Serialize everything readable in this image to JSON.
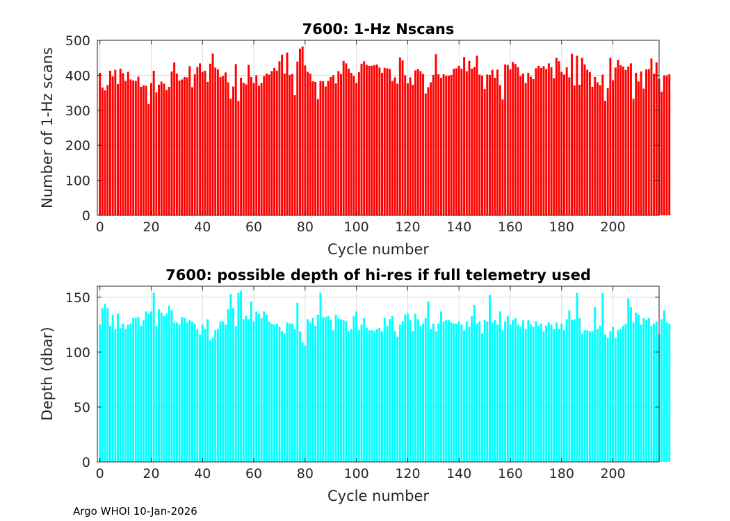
{
  "footer": "Argo WHOI 10-Jan-2026",
  "chart_data": [
    {
      "type": "bar",
      "title": "7600: 1-Hz Nscans",
      "xlabel": "Cycle number",
      "ylabel": "Number of 1-Hz scans",
      "xlim": [
        -1,
        218
      ],
      "ylim": [
        0,
        500
      ],
      "xticks": [
        0,
        20,
        40,
        60,
        80,
        100,
        120,
        140,
        160,
        180,
        200
      ],
      "yticks": [
        0,
        100,
        200,
        300,
        400,
        500
      ],
      "color": "#ff0000",
      "x_start": 0,
      "values": [
        407,
        365,
        357,
        372,
        413,
        397,
        416,
        375,
        419,
        406,
        384,
        410,
        388,
        385,
        384,
        396,
        367,
        371,
        370,
        318,
        378,
        413,
        351,
        373,
        382,
        376,
        358,
        367,
        411,
        437,
        405,
        385,
        388,
        395,
        394,
        426,
        366,
        403,
        424,
        434,
        410,
        413,
        381,
        433,
        462,
        422,
        417,
        395,
        398,
        408,
        380,
        333,
        368,
        432,
        327,
        393,
        379,
        374,
        430,
        395,
        378,
        400,
        370,
        378,
        398,
        405,
        402,
        412,
        421,
        413,
        440,
        459,
        405,
        465,
        401,
        404,
        343,
        439,
        476,
        482,
        428,
        410,
        405,
        383,
        381,
        332,
        384,
        383,
        368,
        384,
        395,
        400,
        377,
        412,
        404,
        441,
        434,
        419,
        407,
        398,
        378,
        409,
        433,
        440,
        430,
        427,
        427,
        429,
        431,
        422,
        407,
        421,
        420,
        418,
        384,
        394,
        376,
        451,
        443,
        400,
        377,
        394,
        373,
        414,
        418,
        412,
        404,
        348,
        366,
        380,
        401,
        460,
        403,
        393,
        403,
        399,
        399,
        401,
        419,
        420,
        427,
        419,
        452,
        412,
        441,
        419,
        424,
        456,
        402,
        399,
        361,
        402,
        401,
        415,
        393,
        416,
        372,
        331,
        431,
        430,
        417,
        438,
        432,
        423,
        398,
        405,
        378,
        407,
        396,
        389,
        420,
        427,
        421,
        426,
        418,
        434,
        423,
        392,
        450,
        440,
        410,
        402,
        423,
        394,
        461,
        371,
        456,
        373,
        450,
        431,
        416,
        409,
        367,
        395,
        380,
        372,
        402,
        327,
        363,
        450,
        386,
        422,
        444,
        429,
        425,
        415,
        425,
        434,
        333,
        407,
        382,
        411,
        362,
        417,
        418,
        448,
        405,
        437,
        390,
        353,
        400,
        400,
        403
      ]
    },
    {
      "type": "bar",
      "title": "7600: possible depth of hi-res if full telemetry used",
      "xlabel": "Cycle number",
      "ylabel": "Depth (dbar)",
      "xlim": [
        -1,
        218
      ],
      "ylim": [
        0,
        160
      ],
      "xticks": [
        0,
        20,
        40,
        60,
        80,
        100,
        120,
        140,
        160,
        180,
        200
      ],
      "yticks": [
        0,
        50,
        100,
        150
      ],
      "color": "#00ffff",
      "x_start": 0,
      "values": [
        125,
        140,
        144,
        140,
        124,
        134,
        121,
        135,
        122,
        126,
        121,
        125,
        126,
        131,
        131,
        132,
        124,
        129,
        137,
        135,
        137,
        154,
        124,
        139,
        136,
        133,
        135,
        142,
        138,
        127,
        127,
        125,
        132,
        131,
        127,
        129,
        128,
        126,
        121,
        116,
        125,
        121,
        130,
        111,
        113,
        120,
        121,
        128,
        128,
        125,
        139,
        153,
        140,
        124,
        154,
        156,
        130,
        133,
        130,
        146,
        128,
        137,
        135,
        131,
        137,
        134,
        128,
        126,
        125,
        126,
        123,
        119,
        117,
        127,
        126,
        126,
        121,
        145,
        119,
        109,
        106,
        130,
        127,
        131,
        124,
        134,
        154,
        132,
        132,
        133,
        129,
        120,
        134,
        131,
        130,
        129,
        128,
        119,
        121,
        133,
        137,
        120,
        125,
        131,
        122,
        120,
        120,
        119,
        121,
        122,
        119,
        131,
        124,
        130,
        133,
        119,
        114,
        125,
        128,
        134,
        135,
        129,
        119,
        135,
        130,
        124,
        126,
        131,
        146,
        121,
        126,
        119,
        126,
        137,
        128,
        129,
        129,
        127,
        126,
        126,
        128,
        125,
        120,
        128,
        123,
        133,
        143,
        126,
        128,
        117,
        129,
        128,
        152,
        127,
        129,
        125,
        137,
        120,
        128,
        133,
        125,
        129,
        131,
        125,
        123,
        129,
        121,
        129,
        125,
        123,
        128,
        124,
        126,
        119,
        124,
        127,
        125,
        121,
        127,
        121,
        126,
        120,
        130,
        138,
        129,
        130,
        154,
        131,
        117,
        120,
        120,
        119,
        119,
        141,
        121,
        124,
        154,
        116,
        113,
        119,
        123,
        113,
        120,
        121,
        124,
        126,
        149,
        141,
        127,
        136,
        134,
        125,
        131,
        129,
        131,
        124,
        126,
        128,
        116,
        130,
        138,
        127,
        126
      ]
    }
  ]
}
